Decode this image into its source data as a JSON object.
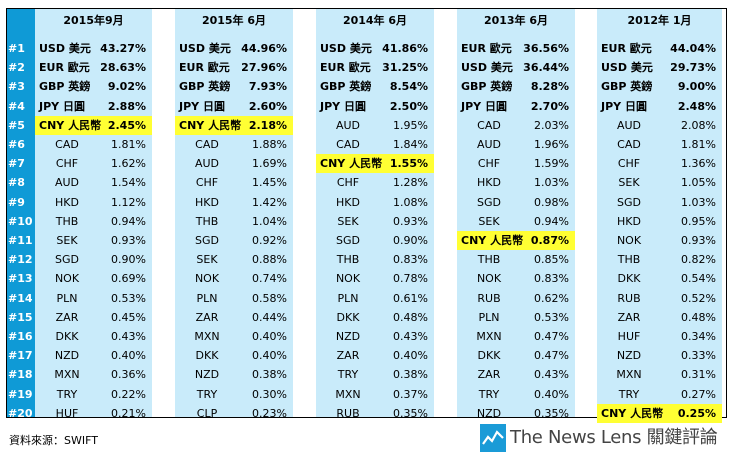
{
  "ranks": [
    "#1",
    "#2",
    "#3",
    "#4",
    "#5",
    "#6",
    "#7",
    "#8",
    "#9",
    "#10",
    "#11",
    "#12",
    "#13",
    "#14",
    "#15",
    "#16",
    "#17",
    "#18",
    "#19",
    "#20"
  ],
  "panels": [
    {
      "header": "2015年9月",
      "highlight_index": 4,
      "rows": [
        {
          "currency": "USD 美元",
          "pct": "43.27%"
        },
        {
          "currency": "EUR 歐元",
          "pct": "28.63%"
        },
        {
          "currency": "GBP 英鎊",
          "pct": "9.02%"
        },
        {
          "currency": "JPY 日圓",
          "pct": "2.88%"
        },
        {
          "currency": "CNY 人民幣",
          "pct": "2.45%"
        },
        {
          "currency": "CAD",
          "pct": "1.81%"
        },
        {
          "currency": "CHF",
          "pct": "1.62%"
        },
        {
          "currency": "AUD",
          "pct": "1.54%"
        },
        {
          "currency": "HKD",
          "pct": "1.12%"
        },
        {
          "currency": "THB",
          "pct": "0.94%"
        },
        {
          "currency": "SEK",
          "pct": "0.93%"
        },
        {
          "currency": "SGD",
          "pct": "0.90%"
        },
        {
          "currency": "NOK",
          "pct": "0.69%"
        },
        {
          "currency": "PLN",
          "pct": "0.53%"
        },
        {
          "currency": "ZAR",
          "pct": "0.45%"
        },
        {
          "currency": "DKK",
          "pct": "0.43%"
        },
        {
          "currency": "NZD",
          "pct": "0.40%"
        },
        {
          "currency": "MXN",
          "pct": "0.36%"
        },
        {
          "currency": "TRY",
          "pct": "0.22%"
        },
        {
          "currency": "HUF",
          "pct": "0.21%"
        }
      ]
    },
    {
      "header": "2015年 6月",
      "highlight_index": 4,
      "rows": [
        {
          "currency": "USD 美元",
          "pct": "44.96%"
        },
        {
          "currency": "EUR 歐元",
          "pct": "27.96%"
        },
        {
          "currency": "GBP 英鎊",
          "pct": "7.93%"
        },
        {
          "currency": "JPY 日圓",
          "pct": "2.60%"
        },
        {
          "currency": "CNY 人民幣",
          "pct": "2.18%"
        },
        {
          "currency": "CAD",
          "pct": "1.88%"
        },
        {
          "currency": "AUD",
          "pct": "1.69%"
        },
        {
          "currency": "CHF",
          "pct": "1.45%"
        },
        {
          "currency": "HKD",
          "pct": "1.42%"
        },
        {
          "currency": "THB",
          "pct": "1.04%"
        },
        {
          "currency": "SGD",
          "pct": "0.92%"
        },
        {
          "currency": "SEK",
          "pct": "0.88%"
        },
        {
          "currency": "NOK",
          "pct": "0.74%"
        },
        {
          "currency": "PLN",
          "pct": "0.58%"
        },
        {
          "currency": "ZAR",
          "pct": "0.44%"
        },
        {
          "currency": "MXN",
          "pct": "0.40%"
        },
        {
          "currency": "DKK",
          "pct": "0.40%"
        },
        {
          "currency": "NZD",
          "pct": "0.38%"
        },
        {
          "currency": "TRY",
          "pct": "0.30%"
        },
        {
          "currency": "CLP",
          "pct": "0.23%"
        }
      ]
    },
    {
      "header": "2014年 6月",
      "highlight_index": 6,
      "rows": [
        {
          "currency": "USD 美元",
          "pct": "41.86%"
        },
        {
          "currency": "EUR 歐元",
          "pct": "31.25%"
        },
        {
          "currency": "GBP 英鎊",
          "pct": "8.54%"
        },
        {
          "currency": "JPY 日圓",
          "pct": "2.50%"
        },
        {
          "currency": "AUD",
          "pct": "1.95%"
        },
        {
          "currency": "CAD",
          "pct": "1.84%"
        },
        {
          "currency": "CNY 人民幣",
          "pct": "1.55%"
        },
        {
          "currency": "CHF",
          "pct": "1.28%"
        },
        {
          "currency": "HKD",
          "pct": "1.08%"
        },
        {
          "currency": "SEK",
          "pct": "0.93%"
        },
        {
          "currency": "SGD",
          "pct": "0.90%"
        },
        {
          "currency": "THB",
          "pct": "0.83%"
        },
        {
          "currency": "NOK",
          "pct": "0.78%"
        },
        {
          "currency": "PLN",
          "pct": "0.61%"
        },
        {
          "currency": "DKK",
          "pct": "0.48%"
        },
        {
          "currency": "NZD",
          "pct": "0.43%"
        },
        {
          "currency": "ZAR",
          "pct": "0.40%"
        },
        {
          "currency": "TRY",
          "pct": "0.38%"
        },
        {
          "currency": "MXN",
          "pct": "0.37%"
        },
        {
          "currency": "RUB",
          "pct": "0.35%"
        }
      ]
    },
    {
      "header": "2013年 6月",
      "highlight_index": 10,
      "rows": [
        {
          "currency": "EUR 歐元",
          "pct": "36.56%"
        },
        {
          "currency": "USD 美元",
          "pct": "36.44%"
        },
        {
          "currency": "GBP 英鎊",
          "pct": "8.28%"
        },
        {
          "currency": "JPY 日圓",
          "pct": "2.70%"
        },
        {
          "currency": "CAD",
          "pct": "2.03%"
        },
        {
          "currency": "AUD",
          "pct": "1.96%"
        },
        {
          "currency": "CHF",
          "pct": "1.59%"
        },
        {
          "currency": "HKD",
          "pct": "1.03%"
        },
        {
          "currency": "SGD",
          "pct": "0.98%"
        },
        {
          "currency": "SEK",
          "pct": "0.94%"
        },
        {
          "currency": "CNY 人民幣",
          "pct": "0.87%"
        },
        {
          "currency": "THB",
          "pct": "0.85%"
        },
        {
          "currency": "NOK",
          "pct": "0.83%"
        },
        {
          "currency": "RUB",
          "pct": "0.62%"
        },
        {
          "currency": "PLN",
          "pct": "0.53%"
        },
        {
          "currency": "MXN",
          "pct": "0.47%"
        },
        {
          "currency": "DKK",
          "pct": "0.47%"
        },
        {
          "currency": "ZAR",
          "pct": "0.43%"
        },
        {
          "currency": "TRY",
          "pct": "0.40%"
        },
        {
          "currency": "NZD",
          "pct": "0.35%"
        }
      ]
    },
    {
      "header": "2012年 1月",
      "highlight_index": 19,
      "rows": [
        {
          "currency": "EUR 歐元",
          "pct": "44.04%"
        },
        {
          "currency": "USD 美元",
          "pct": "29.73%"
        },
        {
          "currency": "GBP 英鎊",
          "pct": "9.00%"
        },
        {
          "currency": "JPY 日圓",
          "pct": "2.48%"
        },
        {
          "currency": "AUD",
          "pct": "2.08%"
        },
        {
          "currency": "CAD",
          "pct": "1.81%"
        },
        {
          "currency": "CHF",
          "pct": "1.36%"
        },
        {
          "currency": "SEK",
          "pct": "1.05%"
        },
        {
          "currency": "SGD",
          "pct": "1.03%"
        },
        {
          "currency": "HKD",
          "pct": "0.95%"
        },
        {
          "currency": "NOK",
          "pct": "0.93%"
        },
        {
          "currency": "THB",
          "pct": "0.82%"
        },
        {
          "currency": "DKK",
          "pct": "0.54%"
        },
        {
          "currency": "RUB",
          "pct": "0.52%"
        },
        {
          "currency": "ZAR",
          "pct": "0.48%"
        },
        {
          "currency": "HUF",
          "pct": "0.34%"
        },
        {
          "currency": "NZD",
          "pct": "0.33%"
        },
        {
          "currency": "MXN",
          "pct": "0.31%"
        },
        {
          "currency": "TRY",
          "pct": "0.27%"
        },
        {
          "currency": "CNY 人民幣",
          "pct": "0.25%"
        }
      ]
    }
  ],
  "footer": {
    "source": "資料來源：SWIFT",
    "logo_text": "The News Lens 關鍵評論"
  },
  "colors": {
    "rank_column": "#0f9ad6",
    "panel_bg": "#c9ebfa",
    "highlight": "#ffff33",
    "logo_blue": "#1a9bd7"
  }
}
